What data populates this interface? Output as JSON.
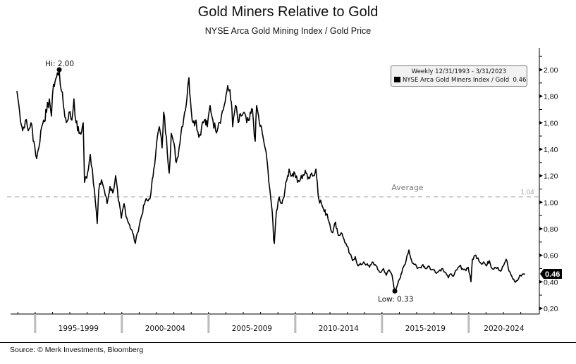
{
  "header": {
    "title": "Gold Miners Relative to Gold",
    "subtitle": "NYSE Arca Gold Mining Index / Gold Price"
  },
  "legend": {
    "period": "Weekly 12/31/1993 - 3/31/2023",
    "series_label": "NYSE Arca Gold Miners Index / Gold",
    "series_last": "0.46"
  },
  "source": "Source: © Merk Investments, Bloomberg",
  "chart_data": {
    "type": "line",
    "title": "Gold Miners Relative to Gold",
    "xlabel": "",
    "ylabel": "",
    "xlim": [
      1993.95,
      2023.25
    ],
    "ylim": [
      0.2,
      2.1
    ],
    "grid": false,
    "legend_position": "top-right",
    "y_ticks": [
      {
        "v": 2.0,
        "label": "2.00"
      },
      {
        "v": 1.8,
        "label": "1,80"
      },
      {
        "v": 1.6,
        "label": "1,60"
      },
      {
        "v": 1.4,
        "label": "1,40"
      },
      {
        "v": 1.2,
        "label": "1,20"
      },
      {
        "v": 1.0,
        "label": "1.00"
      },
      {
        "v": 0.8,
        "label": "0,80"
      },
      {
        "v": 0.6,
        "label": "0,60"
      },
      {
        "v": 0.4,
        "label": "0,40"
      },
      {
        "v": 0.2,
        "label": "0,20"
      }
    ],
    "x_periods": [
      {
        "start": 1995,
        "end": 2000,
        "label": "1995-1999"
      },
      {
        "start": 2000,
        "end": 2005,
        "label": "2000-2004"
      },
      {
        "start": 2005,
        "end": 2010,
        "label": "2005-2009"
      },
      {
        "start": 2010,
        "end": 2015,
        "label": "2010-2014"
      },
      {
        "start": 2015,
        "end": 2020,
        "label": "2015-2019"
      },
      {
        "start": 2020,
        "end": 2025,
        "label": "2020-2024"
      }
    ],
    "average": {
      "value": 1.04,
      "label": "Average",
      "value_label": "1.04"
    },
    "high": {
      "x": 1996.39,
      "y": 2.0,
      "label": "Hi: 2.00"
    },
    "low": {
      "x": 2015.74,
      "y": 0.33,
      "label": "Low: 0.33"
    },
    "last": {
      "y": 0.46,
      "label": "0.46"
    },
    "series": [
      {
        "name": "NYSE Arca Gold Miners Index / Gold",
        "color": "#000000",
        "points": [
          [
            1993.95,
            1.84
          ],
          [
            1994.11,
            1.68
          ],
          [
            1994.28,
            1.54
          ],
          [
            1994.44,
            1.62
          ],
          [
            1994.6,
            1.54
          ],
          [
            1994.76,
            1.6
          ],
          [
            1994.93,
            1.46
          ],
          [
            1995.09,
            1.33
          ],
          [
            1995.21,
            1.41
          ],
          [
            1995.33,
            1.54
          ],
          [
            1995.49,
            1.62
          ],
          [
            1995.66,
            1.68
          ],
          [
            1995.82,
            1.78
          ],
          [
            1995.94,
            1.65
          ],
          [
            1996.06,
            1.89
          ],
          [
            1996.23,
            1.94
          ],
          [
            1996.39,
            2.0
          ],
          [
            1996.51,
            1.84
          ],
          [
            1996.63,
            1.73
          ],
          [
            1996.8,
            1.6
          ],
          [
            1996.96,
            1.68
          ],
          [
            1997.12,
            1.62
          ],
          [
            1997.24,
            1.78
          ],
          [
            1997.36,
            1.6
          ],
          [
            1997.53,
            1.52
          ],
          [
            1997.69,
            1.54
          ],
          [
            1997.77,
            1.6
          ],
          [
            1997.85,
            1.15
          ],
          [
            1998.02,
            1.22
          ],
          [
            1998.18,
            1.36
          ],
          [
            1998.3,
            1.25
          ],
          [
            1998.42,
            1.09
          ],
          [
            1998.58,
            0.84
          ],
          [
            1998.67,
            1.09
          ],
          [
            1998.83,
            1.17
          ],
          [
            1998.99,
            1.09
          ],
          [
            1999.15,
            0.99
          ],
          [
            1999.32,
            1.12
          ],
          [
            1999.48,
            1.07
          ],
          [
            1999.64,
            1.2
          ],
          [
            1999.8,
            1.01
          ],
          [
            1999.97,
            0.88
          ],
          [
            2000.13,
            0.99
          ],
          [
            2000.29,
            0.88
          ],
          [
            2000.45,
            0.83
          ],
          [
            2000.62,
            0.77
          ],
          [
            2000.78,
            0.69
          ],
          [
            2000.9,
            0.77
          ],
          [
            2001.1,
            0.88
          ],
          [
            2001.35,
            1.01
          ],
          [
            2001.51,
            1.01
          ],
          [
            2001.67,
            1.06
          ],
          [
            2001.84,
            1.25
          ],
          [
            2002.0,
            1.44
          ],
          [
            2002.16,
            1.57
          ],
          [
            2002.32,
            1.41
          ],
          [
            2002.41,
            1.68
          ],
          [
            2002.57,
            1.49
          ],
          [
            2002.73,
            1.22
          ],
          [
            2002.85,
            1.52
          ],
          [
            2002.97,
            1.46
          ],
          [
            2003.14,
            1.3
          ],
          [
            2003.3,
            1.41
          ],
          [
            2003.46,
            1.57
          ],
          [
            2003.62,
            1.68
          ],
          [
            2003.75,
            1.78
          ],
          [
            2003.87,
            1.94
          ],
          [
            2003.95,
            1.78
          ],
          [
            2004.11,
            1.6
          ],
          [
            2004.28,
            1.62
          ],
          [
            2004.44,
            1.49
          ],
          [
            2004.6,
            1.57
          ],
          [
            2004.76,
            1.62
          ],
          [
            2004.93,
            1.57
          ],
          [
            2005.09,
            1.73
          ],
          [
            2005.25,
            1.62
          ],
          [
            2005.41,
            1.54
          ],
          [
            2005.58,
            1.6
          ],
          [
            2005.74,
            1.65
          ],
          [
            2005.9,
            1.73
          ],
          [
            2006.06,
            1.84
          ],
          [
            2006.23,
            1.85
          ],
          [
            2006.31,
            1.76
          ],
          [
            2006.39,
            1.57
          ],
          [
            2006.55,
            1.73
          ],
          [
            2006.71,
            1.6
          ],
          [
            2006.88,
            1.65
          ],
          [
            2007.04,
            1.68
          ],
          [
            2007.2,
            1.6
          ],
          [
            2007.36,
            1.62
          ],
          [
            2007.53,
            1.7
          ],
          [
            2007.69,
            1.46
          ],
          [
            2007.77,
            1.73
          ],
          [
            2007.93,
            1.6
          ],
          [
            2008.1,
            1.52
          ],
          [
            2008.26,
            1.41
          ],
          [
            2008.42,
            1.25
          ],
          [
            2008.58,
            1.04
          ],
          [
            2008.67,
            0.93
          ],
          [
            2008.75,
            0.72
          ],
          [
            2008.79,
            0.69
          ],
          [
            2008.91,
            0.93
          ],
          [
            2009.07,
            1.04
          ],
          [
            2009.23,
            0.99
          ],
          [
            2009.4,
            1.09
          ],
          [
            2009.56,
            1.2
          ],
          [
            2009.64,
            1.25
          ],
          [
            2009.8,
            1.2
          ],
          [
            2009.97,
            1.22
          ],
          [
            2010.13,
            1.15
          ],
          [
            2010.29,
            1.17
          ],
          [
            2010.45,
            1.21
          ],
          [
            2010.62,
            1.22
          ],
          [
            2010.78,
            1.19
          ],
          [
            2010.94,
            1.22
          ],
          [
            2011.1,
            1.2
          ],
          [
            2011.19,
            1.25
          ],
          [
            2011.27,
            1.15
          ],
          [
            2011.35,
            1.03
          ],
          [
            2011.51,
            0.99
          ],
          [
            2011.67,
            0.93
          ],
          [
            2011.84,
            0.91
          ],
          [
            2012.0,
            0.83
          ],
          [
            2012.16,
            0.77
          ],
          [
            2012.32,
            0.85
          ],
          [
            2012.49,
            0.75
          ],
          [
            2012.65,
            0.77
          ],
          [
            2012.81,
            0.72
          ],
          [
            2012.97,
            0.67
          ],
          [
            2013.14,
            0.61
          ],
          [
            2013.3,
            0.56
          ],
          [
            2013.46,
            0.59
          ],
          [
            2013.62,
            0.52
          ],
          [
            2013.79,
            0.53
          ],
          [
            2013.95,
            0.55
          ],
          [
            2014.11,
            0.53
          ],
          [
            2014.28,
            0.51
          ],
          [
            2014.44,
            0.55
          ],
          [
            2014.6,
            0.53
          ],
          [
            2014.76,
            0.49
          ],
          [
            2014.93,
            0.47
          ],
          [
            2015.09,
            0.5
          ],
          [
            2015.25,
            0.45
          ],
          [
            2015.41,
            0.49
          ],
          [
            2015.58,
            0.45
          ],
          [
            2015.74,
            0.33
          ],
          [
            2015.9,
            0.38
          ],
          [
            2016.06,
            0.43
          ],
          [
            2016.23,
            0.51
          ],
          [
            2016.39,
            0.56
          ],
          [
            2016.55,
            0.64
          ],
          [
            2016.71,
            0.56
          ],
          [
            2016.88,
            0.53
          ],
          [
            2017.04,
            0.5
          ],
          [
            2017.2,
            0.51
          ],
          [
            2017.36,
            0.53
          ],
          [
            2017.53,
            0.5
          ],
          [
            2017.69,
            0.52
          ],
          [
            2017.85,
            0.49
          ],
          [
            2018.02,
            0.49
          ],
          [
            2018.18,
            0.47
          ],
          [
            2018.34,
            0.49
          ],
          [
            2018.5,
            0.5
          ],
          [
            2018.67,
            0.47
          ],
          [
            2018.83,
            0.43
          ],
          [
            2018.99,
            0.46
          ],
          [
            2019.15,
            0.45
          ],
          [
            2019.32,
            0.49
          ],
          [
            2019.48,
            0.52
          ],
          [
            2019.64,
            0.5
          ],
          [
            2019.8,
            0.49
          ],
          [
            2019.97,
            0.51
          ],
          [
            2020.13,
            0.4
          ],
          [
            2020.21,
            0.57
          ],
          [
            2020.37,
            0.6
          ],
          [
            2020.54,
            0.58
          ],
          [
            2020.7,
            0.54
          ],
          [
            2020.86,
            0.55
          ],
          [
            2021.02,
            0.52
          ],
          [
            2021.19,
            0.56
          ],
          [
            2021.35,
            0.5
          ],
          [
            2021.51,
            0.51
          ],
          [
            2021.67,
            0.51
          ],
          [
            2021.84,
            0.48
          ],
          [
            2022.0,
            0.52
          ],
          [
            2022.16,
            0.57
          ],
          [
            2022.33,
            0.48
          ],
          [
            2022.49,
            0.44
          ],
          [
            2022.65,
            0.4
          ],
          [
            2022.81,
            0.41
          ],
          [
            2022.98,
            0.45
          ],
          [
            2023.14,
            0.46
          ],
          [
            2023.25,
            0.46
          ]
        ]
      }
    ]
  }
}
